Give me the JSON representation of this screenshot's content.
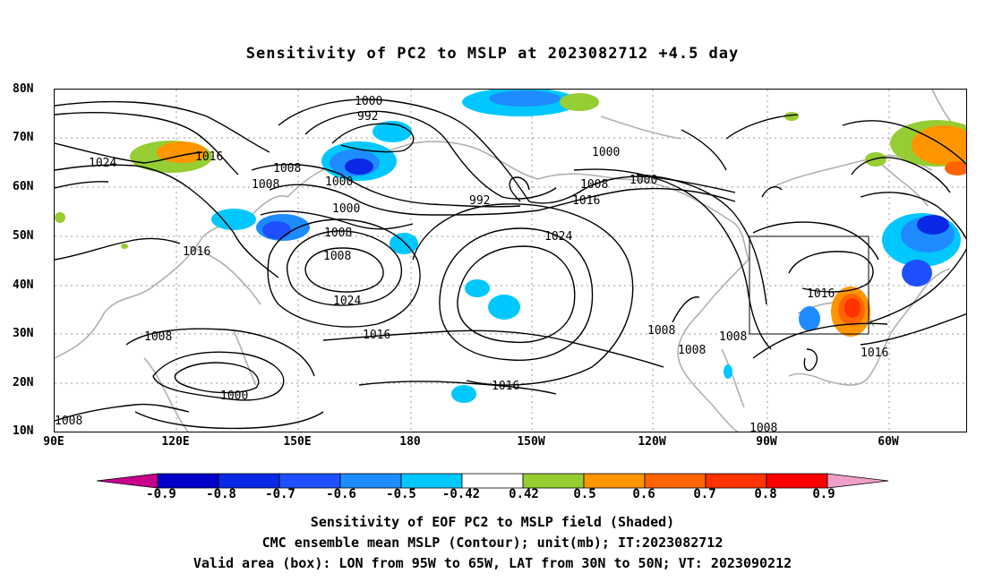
{
  "title": "Sensitivity of PC2 to MSLP at 2023082712 +4.5 day",
  "lat_labels": [
    "80N",
    "70N",
    "60N",
    "50N",
    "40N",
    "30N",
    "20N",
    "10N"
  ],
  "lon_labels": [
    "90E",
    "120E",
    "150E",
    "180",
    "150W",
    "120W",
    "90W",
    "60W"
  ],
  "contour_labels": [
    "1000",
    "992",
    "1024",
    "1016",
    "1008",
    "1000",
    "1008",
    "1000",
    "992",
    "1008",
    "1000",
    "1016",
    "1000",
    "1008",
    "1016",
    "1008",
    "1024",
    "1024",
    "1016",
    "1016",
    "1008",
    "1008",
    "1008",
    "1016",
    "1016",
    "1008",
    "1008",
    "1000",
    "1008"
  ],
  "colorbar": {
    "labels": [
      "-0.9",
      "-0.8",
      "-0.7",
      "-0.6",
      "-0.5",
      "-0.42",
      "0.42",
      "0.5",
      "0.6",
      "0.7",
      "0.8",
      "0.9"
    ],
    "colors": [
      "#0000c8",
      "#0a28e6",
      "#1e50ff",
      "#1e8cff",
      "#00c8ff",
      "#ffffff",
      "#96cd32",
      "#ff9600",
      "#ff6400",
      "#ff3200",
      "#ff0000"
    ],
    "low_color": "#c8008c",
    "high_color": "#f0a0c8"
  },
  "captions": [
    "Sensitivity of EOF PC2 to MSLP field (Shaded)",
    "CMC ensemble mean MSLP (Contour); unit(mb); IT:2023082712",
    "Valid area (box): LON from 95W to 65W, LAT from 30N to 50N; VT: 2023090212"
  ]
}
